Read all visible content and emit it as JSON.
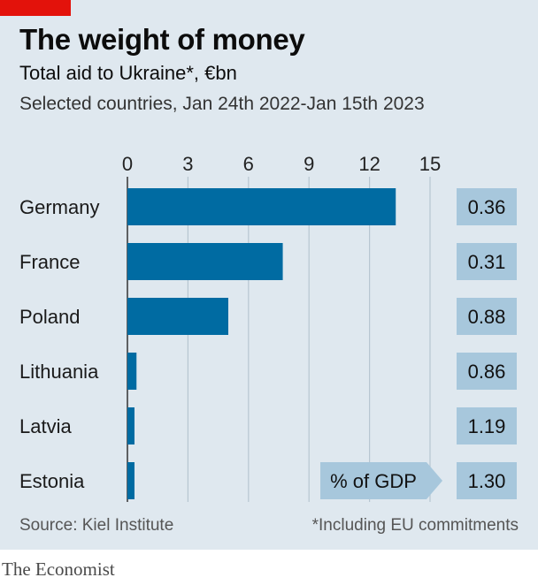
{
  "header": {
    "title": "The weight of money",
    "subtitle": "Total aid to Ukraine*, €bn",
    "subsubtitle": "Selected countries, Jan 24th 2022-Jan 15th 2023"
  },
  "footer": {
    "source": "Source: Kiel Institute",
    "note": "*Including EU commitments",
    "brand": "The Economist"
  },
  "colors": {
    "bar": "#006ba2",
    "grid": "#b7c6d1",
    "gdp_box": "#a7c7dc",
    "accent": "#e3120b"
  },
  "chart_data": {
    "type": "bar",
    "orientation": "horizontal",
    "title": "The weight of money",
    "subtitle": "Total aid to Ukraine*, €bn",
    "categories": [
      "Germany",
      "France",
      "Poland",
      "Lithuania",
      "Latvia",
      "Estonia"
    ],
    "values": [
      13.3,
      7.7,
      5.0,
      0.45,
      0.35,
      0.35
    ],
    "xlim": [
      0,
      15
    ],
    "xticks": [
      "0",
      "3",
      "6",
      "9",
      "12",
      "15"
    ],
    "xtick_values": [
      0,
      3,
      6,
      9,
      12,
      15
    ],
    "grid": true,
    "gdp_label": "% of GDP",
    "gdp_values": [
      "0.36",
      "0.31",
      "0.88",
      "0.86",
      "1.19",
      "1.30"
    ]
  }
}
